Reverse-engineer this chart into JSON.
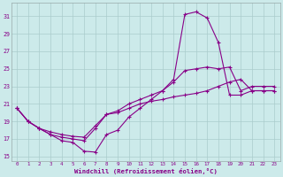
{
  "xlabel": "Windchill (Refroidissement éolien,°C)",
  "bg_color": "#cceaea",
  "grid_color": "#aacccc",
  "line_color": "#880088",
  "markersize": 2.5,
  "linewidth": 0.8,
  "xlim": [
    -0.5,
    23.5
  ],
  "ylim": [
    14.5,
    32.5
  ],
  "yticks": [
    15,
    17,
    19,
    21,
    23,
    25,
    27,
    29,
    31
  ],
  "xticks": [
    0,
    1,
    2,
    3,
    4,
    5,
    6,
    7,
    8,
    9,
    10,
    11,
    12,
    13,
    14,
    15,
    16,
    17,
    18,
    19,
    20,
    21,
    22,
    23
  ],
  "curve1_x": [
    0,
    1,
    2,
    3,
    4,
    5,
    6,
    7,
    8,
    9,
    10,
    11,
    12,
    13,
    14,
    15,
    16,
    17,
    18,
    19,
    20,
    21,
    22,
    23
  ],
  "curve1_y": [
    20.5,
    19.0,
    18.2,
    17.5,
    16.8,
    16.6,
    15.6,
    15.5,
    17.5,
    18.0,
    19.5,
    20.5,
    21.5,
    22.5,
    23.8,
    31.2,
    31.5,
    30.8,
    28.0,
    22.0,
    22.0,
    22.5,
    22.5,
    22.5
  ],
  "curve2_x": [
    0,
    1,
    2,
    3,
    4,
    5,
    6,
    7,
    8,
    9,
    10,
    11,
    12,
    13,
    14,
    15,
    16,
    17,
    18,
    19,
    20,
    21,
    22,
    23
  ],
  "curve2_y": [
    20.5,
    19.0,
    18.2,
    17.5,
    17.2,
    17.0,
    16.8,
    18.2,
    19.8,
    20.2,
    21.0,
    21.5,
    22.0,
    22.5,
    23.5,
    24.8,
    25.0,
    25.2,
    25.0,
    25.2,
    22.5,
    23.0,
    23.0,
    23.0
  ],
  "curve3_x": [
    0,
    1,
    2,
    3,
    4,
    5,
    6,
    7,
    8,
    9,
    10,
    11,
    12,
    13,
    14,
    15,
    16,
    17,
    18,
    19,
    20,
    21,
    22,
    23
  ],
  "curve3_y": [
    20.5,
    19.0,
    18.2,
    17.8,
    17.5,
    17.3,
    17.2,
    18.5,
    19.8,
    20.0,
    20.5,
    21.0,
    21.3,
    21.5,
    21.8,
    22.0,
    22.2,
    22.5,
    23.0,
    23.5,
    23.8,
    22.5,
    22.5,
    22.5
  ]
}
